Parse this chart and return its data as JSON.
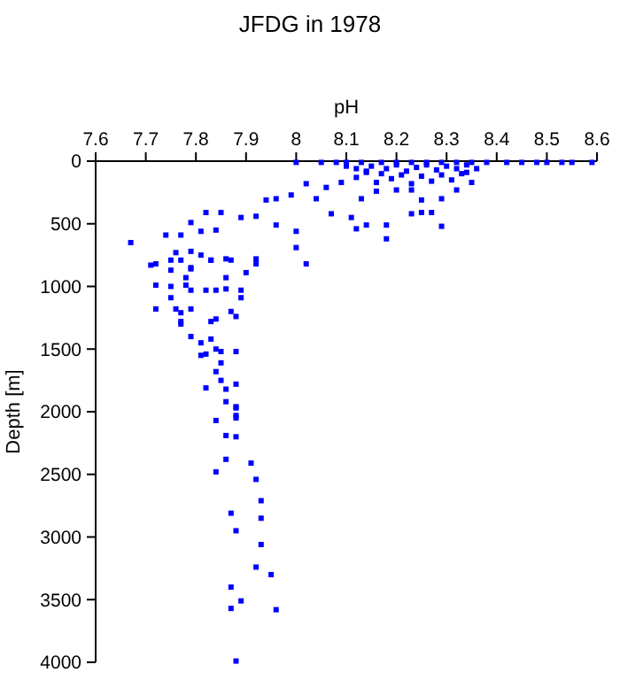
{
  "chart_data": {
    "type": "scatter",
    "title": "JFDG in 1978",
    "xlabel": "pH",
    "ylabel": "Depth [m]",
    "xlim": [
      7.6,
      8.6
    ],
    "xticks": [
      7.6,
      7.7,
      7.8,
      7.9,
      8,
      8.1,
      8.2,
      8.3,
      8.4,
      8.5,
      8.6
    ],
    "ylim": [
      4000,
      0
    ],
    "yticks": [
      0,
      500,
      1000,
      1500,
      2000,
      2500,
      3000,
      3500,
      4000
    ],
    "marker": "square",
    "grid": false,
    "series": [
      {
        "color": "#0000ff",
        "x": [
          8.0,
          8.05,
          8.08,
          8.1,
          8.13,
          8.17,
          8.2,
          8.23,
          8.26,
          8.29,
          8.32,
          8.35,
          8.38,
          8.42,
          8.45,
          8.48,
          8.5,
          8.53,
          8.55,
          8.59,
          8.15,
          8.18,
          8.2,
          8.22,
          8.24,
          8.26,
          8.28,
          8.3,
          8.32,
          8.34,
          8.21,
          8.25,
          8.29,
          8.33,
          8.19,
          8.27,
          8.23,
          8.31,
          8.17,
          8.12,
          8.1,
          8.14,
          8.02,
          8.06,
          7.99,
          7.96,
          7.94,
          7.92,
          7.89,
          7.85,
          7.82,
          7.84,
          7.79,
          7.81,
          7.74,
          7.77,
          7.67,
          7.72,
          7.76,
          7.79,
          7.83,
          7.87,
          7.9,
          7.92,
          8.0,
          8.02,
          7.96,
          8.0,
          8.07,
          8.11,
          8.12,
          8.14,
          8.18,
          8.18,
          8.23,
          8.27,
          8.29,
          8.25,
          8.09,
          8.12,
          8.14,
          8.16,
          8.2,
          8.23,
          8.25,
          8.29,
          8.32,
          8.35,
          8.34,
          8.36,
          8.04,
          8.13,
          8.16,
          7.71,
          7.75,
          7.77,
          7.79,
          7.81,
          7.83,
          7.86,
          7.92,
          7.79,
          7.75,
          7.78,
          7.86,
          7.72,
          7.75,
          7.78,
          7.79,
          7.82,
          7.84,
          7.86,
          7.89,
          7.89,
          7.75,
          7.72,
          7.76,
          7.77,
          7.79,
          7.83,
          7.84,
          7.87,
          7.88,
          7.77,
          7.77,
          7.79,
          7.83,
          7.81,
          7.84,
          7.81,
          7.82,
          7.85,
          7.88,
          7.85,
          7.84,
          7.85,
          7.88,
          7.82,
          7.86,
          7.86,
          7.88,
          7.88,
          7.84,
          7.88,
          7.88,
          7.86,
          7.88,
          7.86,
          7.91,
          7.84,
          7.92,
          7.93,
          7.87,
          7.93,
          7.88,
          7.93,
          7.92,
          7.95,
          7.87,
          7.89,
          7.87,
          7.96,
          7.88
        ],
        "values": [
          10,
          10,
          10,
          10,
          10,
          10,
          10,
          10,
          10,
          10,
          10,
          10,
          10,
          10,
          10,
          10,
          10,
          10,
          10,
          10,
          40,
          60,
          30,
          80,
          50,
          30,
          70,
          40,
          60,
          30,
          110,
          120,
          110,
          100,
          140,
          160,
          180,
          150,
          100,
          60,
          40,
          80,
          180,
          210,
          270,
          300,
          310,
          440,
          450,
          410,
          410,
          550,
          490,
          560,
          590,
          590,
          650,
          820,
          730,
          850,
          790,
          790,
          890,
          820,
          690,
          820,
          510,
          560,
          420,
          450,
          540,
          510,
          620,
          510,
          420,
          410,
          520,
          410,
          170,
          130,
          90,
          170,
          230,
          230,
          310,
          300,
          230,
          170,
          90,
          60,
          300,
          300,
          240,
          830,
          790,
          790,
          720,
          750,
          790,
          780,
          780,
          860,
          870,
          930,
          930,
          990,
          1000,
          990,
          1030,
          1030,
          1030,
          1020,
          1030,
          1090,
          1090,
          1180,
          1180,
          1210,
          1180,
          1280,
          1260,
          1200,
          1240,
          1280,
          1300,
          1400,
          1420,
          1450,
          1500,
          1550,
          1540,
          1520,
          1520,
          1610,
          1680,
          1750,
          1780,
          1810,
          1820,
          1920,
          1960,
          2050,
          2070,
          1970,
          2030,
          2190,
          2200,
          2380,
          2410,
          2480,
          2540,
          2710,
          2810,
          2850,
          2950,
          3060,
          3240,
          3300,
          3400,
          3510,
          3570,
          3580,
          3990
        ]
      }
    ]
  }
}
